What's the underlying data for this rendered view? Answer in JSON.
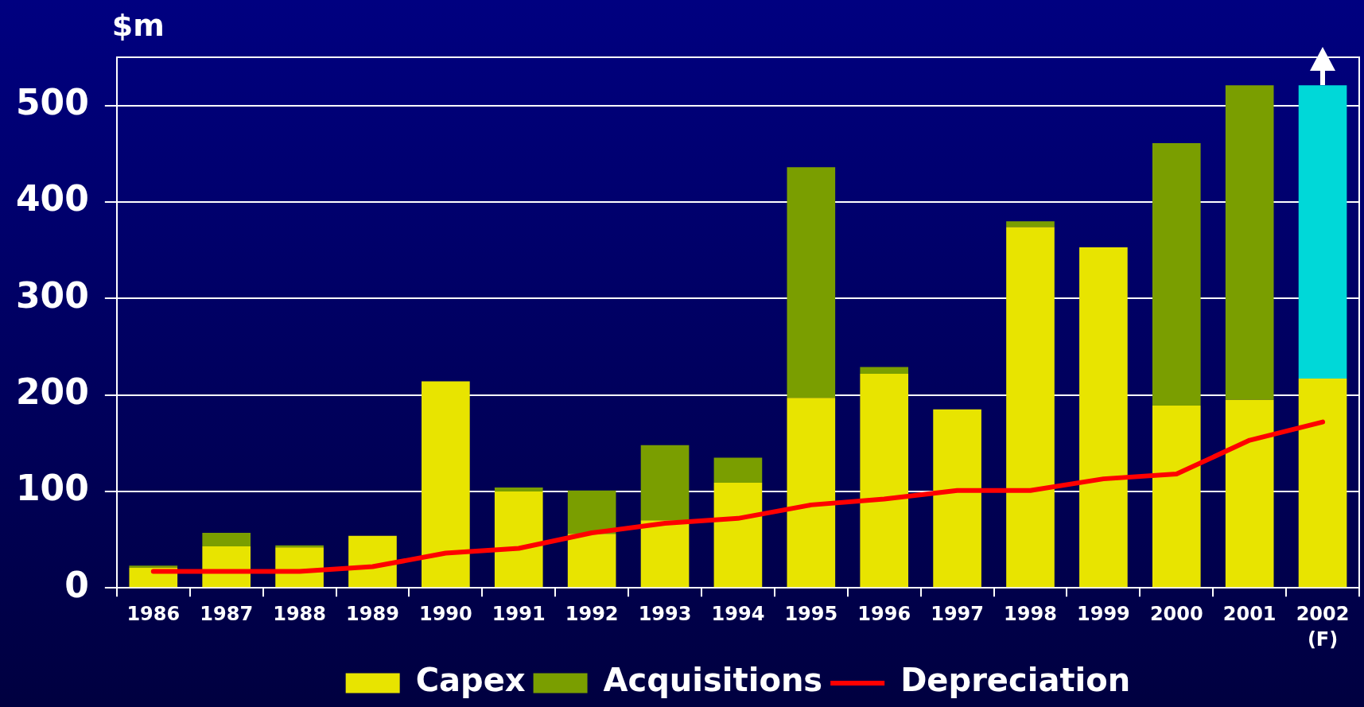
{
  "chart_data": {
    "type": "bar",
    "ylabel": "$m",
    "categories": [
      "1986",
      "1987",
      "1988",
      "1989",
      "1990",
      "1991",
      "1992",
      "1993",
      "1994",
      "1995",
      "1996",
      "1997",
      "1998",
      "1999",
      "2000",
      "2001",
      "2002\n(F)"
    ],
    "stacked": true,
    "ylim": [
      0,
      550
    ],
    "yticks": [
      0,
      100,
      200,
      300,
      400,
      500
    ],
    "grid": "y",
    "legend": "bottom",
    "marker": "none",
    "series": [
      {
        "name": "Capex",
        "color": "#e8e400",
        "values": [
          21,
          43,
          42,
          54,
          214,
          100,
          56,
          70,
          109,
          197,
          222,
          185,
          374,
          353,
          189,
          195,
          217
        ]
      },
      {
        "name": "Acquisitions",
        "color": "#7a9e00",
        "values": [
          2,
          14,
          2,
          null,
          null,
          4,
          45,
          78,
          26,
          239,
          7,
          null,
          6,
          null,
          272,
          326,
          null
        ]
      },
      {
        "color": "#00d8d8",
        "values": [
          null,
          null,
          null,
          null,
          null,
          null,
          null,
          null,
          null,
          null,
          null,
          null,
          null,
          null,
          null,
          null,
          304
        ]
      },
      {
        "name": "Depreciation",
        "type": "line",
        "color": "#ff0000",
        "values": [
          17,
          17,
          17,
          22,
          36,
          41,
          57,
          67,
          72,
          86,
          92,
          101,
          101,
          113,
          118,
          153,
          172
        ]
      }
    ]
  }
}
